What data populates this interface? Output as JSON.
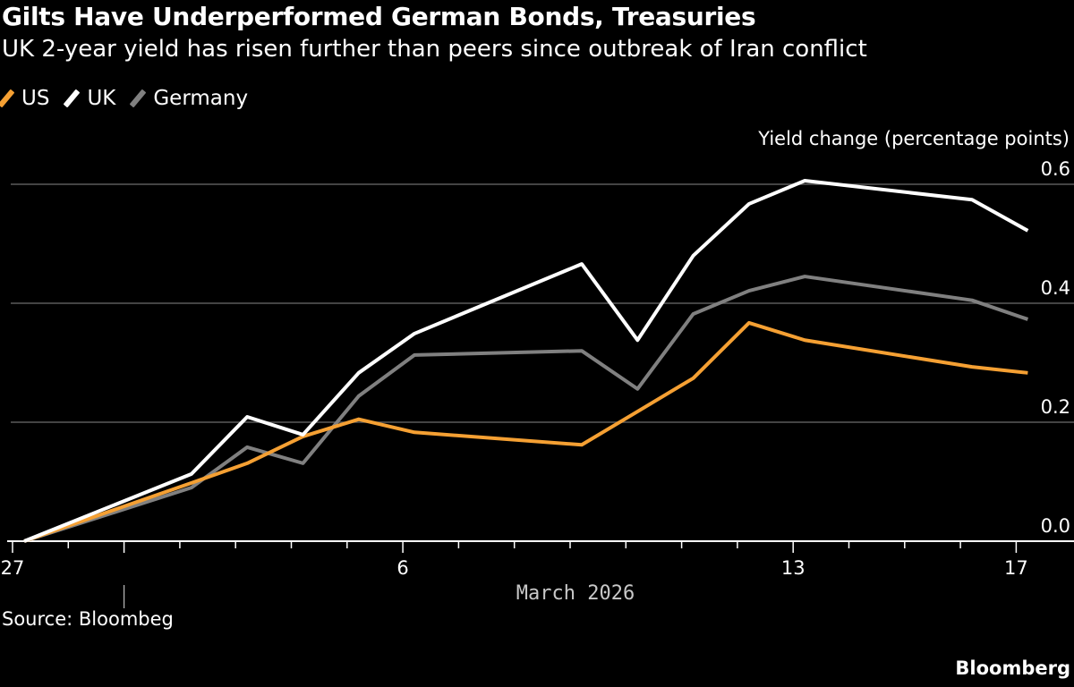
{
  "title": "Gilts Have Underperformed German Bonds, Treasuries",
  "subtitle": "UK 2-year yield has risen further than peers since outbreak of Iran conflict",
  "source": "Source: Bloombeg",
  "brand": "Bloomberg",
  "chart_data": {
    "type": "line",
    "ylabel": "Yield change (percentage points)",
    "xlabel": "March 2026",
    "ylim": [
      0,
      0.6
    ],
    "yticks": [
      "0.0",
      "0.2",
      "0.4",
      "0.6"
    ],
    "x_tick_days": [
      "27",
      "28",
      "1",
      "2",
      "3",
      "4",
      "5",
      "6",
      "7",
      "8",
      "9",
      "10",
      "11",
      "12",
      "13",
      "14",
      "15",
      "16",
      "17"
    ],
    "x_tick_labels": [
      {
        "day_index": 0,
        "label": "27"
      },
      {
        "day_index": 7,
        "label": "6"
      },
      {
        "day_index": 14,
        "label": "13"
      },
      {
        "day_index": 18,
        "label": "17"
      }
    ],
    "grid": "horizontal",
    "legend_placement": "top-left",
    "x": [
      "2026-02-27",
      "2026-03-02",
      "2026-03-03",
      "2026-03-04",
      "2026-03-05",
      "2026-03-06",
      "2026-03-09",
      "2026-03-10",
      "2026-03-11",
      "2026-03-12",
      "2026-03-13",
      "2026-03-16",
      "2026-03-17"
    ],
    "series": [
      {
        "name": "US",
        "color": "#f5a033",
        "values": [
          0,
          0.098,
          0.131,
          0.176,
          0.205,
          0.183,
          0.162,
          0.218,
          0.274,
          0.367,
          0.338,
          0.293,
          0.283
        ]
      },
      {
        "name": "UK",
        "color": "#ffffff",
        "values": [
          0,
          0.113,
          0.209,
          0.179,
          0.283,
          0.349,
          0.466,
          0.338,
          0.48,
          0.567,
          0.606,
          0.574,
          0.522
        ]
      },
      {
        "name": "Germany",
        "color": "#808080",
        "values": [
          0,
          0.09,
          0.158,
          0.131,
          0.244,
          0.313,
          0.32,
          0.256,
          0.382,
          0.421,
          0.445,
          0.405,
          0.373
        ]
      }
    ]
  }
}
